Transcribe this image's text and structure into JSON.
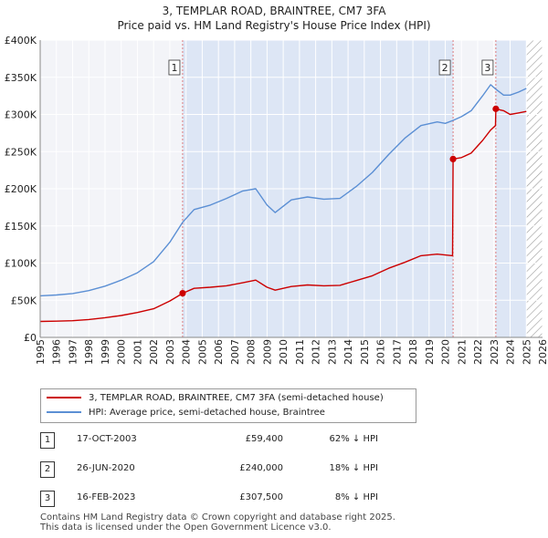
{
  "header": {
    "title": "3, TEMPLAR ROAD, BRAINTREE, CM7 3FA",
    "subtitle": "Price paid vs. HM Land Registry's House Price Index (HPI)"
  },
  "legend": {
    "items": [
      {
        "label": "3, TEMPLAR ROAD, BRAINTREE, CM7 3FA (semi-detached house)",
        "color": "#cc0000"
      },
      {
        "label": "HPI: Average price, semi-detached house, Braintree",
        "color": "#5b8fd4"
      }
    ]
  },
  "sales": [
    {
      "num": "1",
      "date": "17-OCT-2003",
      "price": "£59,400",
      "hpi": "62% ↓ HPI"
    },
    {
      "num": "2",
      "date": "26-JUN-2020",
      "price": "£240,000",
      "hpi": "18% ↓ HPI"
    },
    {
      "num": "3",
      "date": "16-FEB-2023",
      "price": "£307,500",
      "hpi": "8% ↓ HPI"
    }
  ],
  "footer": {
    "line1": "Contains HM Land Registry data © Crown copyright and database right 2025.",
    "line2": "This data is licensed under the Open Government Licence v3.0."
  },
  "chart_data": {
    "type": "line",
    "title": "3, TEMPLAR ROAD, BRAINTREE, CM7 3FA",
    "subtitle": "Price paid vs. HM Land Registry's House Price Index (HPI)",
    "xlabel": "",
    "ylabel": "",
    "xlim": [
      1995,
      2026
    ],
    "ylim": [
      0,
      400000
    ],
    "x_ticks": [
      1995,
      1996,
      1997,
      1998,
      1999,
      2000,
      2001,
      2002,
      2003,
      2004,
      2005,
      2006,
      2007,
      2008,
      2009,
      2010,
      2011,
      2012,
      2013,
      2014,
      2015,
      2016,
      2017,
      2018,
      2019,
      2020,
      2021,
      2022,
      2023,
      2024,
      2025,
      2026
    ],
    "y_ticks": [
      {
        "value": 0,
        "label": "£0"
      },
      {
        "value": 50000,
        "label": "£50K"
      },
      {
        "value": 100000,
        "label": "£100K"
      },
      {
        "value": 150000,
        "label": "£150K"
      },
      {
        "value": 200000,
        "label": "£200K"
      },
      {
        "value": 250000,
        "label": "£250K"
      },
      {
        "value": 300000,
        "label": "£300K"
      },
      {
        "value": 350000,
        "label": "£350K"
      },
      {
        "value": 400000,
        "label": "£400K"
      }
    ],
    "grid": true,
    "shaded_regions": [
      {
        "from": 2003.79,
        "to": 2020.48,
        "label": "ownership"
      },
      {
        "from": 2023.12,
        "to": 2026,
        "label": "ownership"
      }
    ],
    "hatched_region": {
      "from": 2025.0,
      "to": 2026
    },
    "markers": [
      {
        "label": "1",
        "x": 2003.79,
        "y": 59400
      },
      {
        "label": "2",
        "x": 2020.48,
        "y": 240000
      },
      {
        "label": "3",
        "x": 2023.12,
        "y": 307500
      }
    ],
    "series": [
      {
        "name": "3, TEMPLAR ROAD, BRAINTREE, CM7 3FA (semi-detached house)",
        "color": "#cc0000",
        "x": [
          1995.0,
          1996.0,
          1997.0,
          1998.0,
          1999.0,
          2000.0,
          2001.0,
          2002.0,
          2003.0,
          2003.79,
          2004.5,
          2005.5,
          2006.5,
          2007.5,
          2008.3,
          2009.0,
          2009.5,
          2010.5,
          2011.5,
          2012.5,
          2013.5,
          2014.5,
          2015.5,
          2016.5,
          2017.5,
          2018.5,
          2019.5,
          2020.45,
          2020.48,
          2021.0,
          2021.6,
          2022.3,
          2022.8,
          2023.1,
          2023.12,
          2023.6,
          2024.0,
          2024.5,
          2025.0
        ],
        "y": [
          21500,
          21800,
          22500,
          24000,
          26500,
          29500,
          33500,
          38500,
          49000,
          59400,
          66000,
          67500,
          69500,
          73500,
          77000,
          67500,
          63500,
          68500,
          70500,
          69500,
          70000,
          76500,
          83000,
          93000,
          101000,
          110000,
          112000,
          110000,
          240000,
          242000,
          248000,
          265000,
          279000,
          285000,
          307500,
          305000,
          300000,
          302000,
          304000
        ]
      },
      {
        "name": "HPI: Average price, semi-detached house, Braintree",
        "color": "#5b8fd4",
        "x": [
          1995.0,
          1996.0,
          1997.0,
          1998.0,
          1999.0,
          2000.0,
          2001.0,
          2002.0,
          2003.0,
          2003.79,
          2004.5,
          2005.5,
          2006.5,
          2007.5,
          2008.3,
          2009.0,
          2009.5,
          2010.5,
          2011.5,
          2012.5,
          2013.5,
          2014.5,
          2015.5,
          2016.5,
          2017.5,
          2018.5,
          2019.5,
          2020.0,
          2020.48,
          2021.0,
          2021.6,
          2022.3,
          2022.8,
          2023.12,
          2023.6,
          2024.0,
          2024.5,
          2025.0
        ],
        "y": [
          56000,
          57000,
          59000,
          63000,
          69000,
          77000,
          87000,
          102000,
          128000,
          155000,
          172000,
          178000,
          187000,
          197000,
          200000,
          178000,
          168000,
          185000,
          189000,
          186000,
          187000,
          203000,
          222000,
          246000,
          268000,
          285000,
          290000,
          288000,
          292000,
          297000,
          305000,
          325000,
          340000,
          334000,
          326000,
          326000,
          330000,
          335000
        ]
      }
    ]
  }
}
